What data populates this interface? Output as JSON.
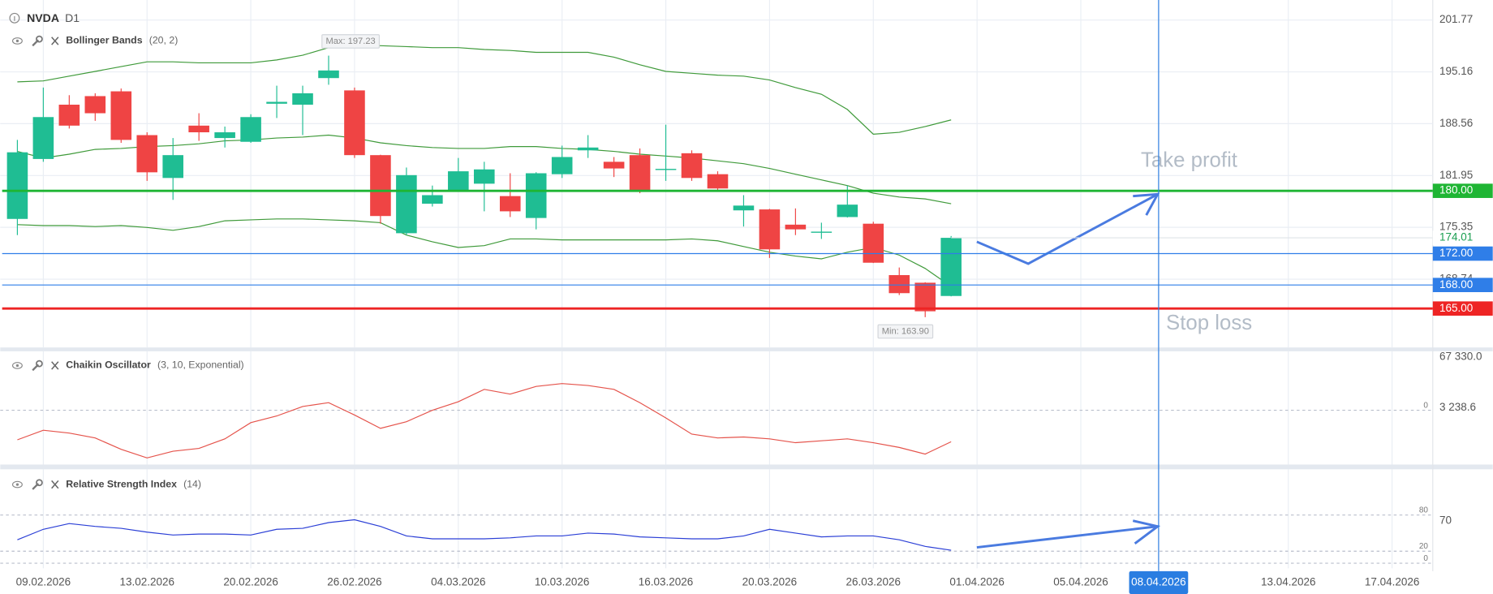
{
  "chart_data": {
    "type": "candlestick",
    "symbol": "NVDA",
    "timeframe": "D1",
    "up_color": "#1fbd93",
    "down_color": "#ef4444",
    "x": [
      0,
      1,
      2,
      3,
      4,
      5,
      6,
      7,
      8,
      9,
      10,
      11,
      12,
      13,
      14,
      15,
      16,
      17,
      18,
      19,
      20,
      21,
      22,
      23,
      24,
      25,
      26,
      27,
      28,
      29,
      30,
      31,
      32,
      33,
      34,
      35,
      36
    ],
    "open": [
      176.42,
      184.06,
      190.98,
      192.07,
      192.68,
      187.1,
      181.64,
      188.31,
      186.73,
      186.25,
      191.1,
      190.98,
      194.37,
      192.8,
      184.55,
      174.6,
      178.36,
      179.94,
      180.91,
      179.33,
      176.54,
      182.12,
      185.16,
      183.7,
      184.55,
      182.73,
      184.79,
      182.12,
      177.51,
      177.63,
      175.69,
      174.72,
      176.66,
      175.81,
      169.26,
      168.29,
      166.6
    ],
    "high": [
      186.49,
      193.16,
      192.19,
      192.43,
      193.04,
      187.46,
      186.73,
      189.89,
      188.19,
      189.76,
      193.4,
      193.4,
      197.23,
      193.16,
      184.6,
      182.97,
      180.67,
      184.19,
      183.7,
      182.24,
      182.37,
      185.76,
      187.1,
      184.31,
      185.4,
      188.43,
      185.16,
      182.49,
      179.45,
      177.7,
      177.76,
      175.94,
      180.67,
      176.06,
      170.23,
      168.35,
      174.24
    ],
    "low": [
      174.36,
      183.7,
      187.94,
      188.92,
      186.12,
      181.27,
      178.85,
      186.37,
      185.52,
      186.12,
      189.28,
      187.1,
      193.52,
      184.19,
      175.81,
      174.36,
      178.0,
      179.9,
      177.39,
      176.66,
      175.09,
      181.64,
      184.19,
      181.76,
      179.7,
      181.27,
      181.27,
      180.06,
      175.45,
      171.45,
      174.36,
      173.87,
      176.6,
      170.8,
      166.72,
      163.9,
      166.55
    ],
    "close": [
      184.91,
      189.4,
      188.31,
      189.89,
      186.49,
      182.36,
      184.55,
      187.46,
      187.46,
      189.4,
      191.34,
      192.43,
      195.34,
      184.55,
      176.79,
      182.0,
      179.45,
      182.49,
      182.73,
      177.39,
      182.24,
      184.31,
      185.52,
      182.85,
      180.06,
      182.8,
      181.64,
      180.3,
      178.12,
      172.54,
      175.09,
      174.8,
      178.24,
      170.84,
      166.96,
      164.65,
      174.01
    ],
    "max_label": "Max: 197.23",
    "min_label": "Min: 163.90",
    "xlim": [
      -0.66,
      54.57
    ],
    "xticks": [
      {
        "value": 1,
        "label": "09.02.2026"
      },
      {
        "value": 5,
        "label": "13.02.2026"
      },
      {
        "value": 9,
        "label": "20.02.2026"
      },
      {
        "value": 13,
        "label": "26.02.2026"
      },
      {
        "value": 17,
        "label": "04.03.2026"
      },
      {
        "value": 21,
        "label": "10.03.2026"
      },
      {
        "value": 25,
        "label": "16.03.2026"
      },
      {
        "value": 29,
        "label": "20.03.2026"
      },
      {
        "value": 33,
        "label": "26.03.2026"
      },
      {
        "value": 37,
        "label": "01.04.2026"
      },
      {
        "value": 41,
        "label": "05.04.2026"
      },
      {
        "value": 44,
        "label": "08.04.2026"
      },
      {
        "value": 49,
        "label": "13.04.2026"
      },
      {
        "value": 53,
        "label": "17.04.2026"
      }
    ],
    "crosshair_x": 44,
    "ylim": [
      160.04,
      204.32
    ],
    "yticks": [
      201.77,
      195.16,
      188.56,
      181.95,
      175.35,
      168.74
    ],
    "grid": true,
    "last_price": {
      "value": 174.01,
      "label": "174.01"
    },
    "price_lines": [
      {
        "value": 180,
        "label": "180.00",
        "color": "#1fb534",
        "note": "Take profit"
      },
      {
        "value": 172,
        "label": "172.00",
        "color": "#2f7ee8"
      },
      {
        "value": 168,
        "label": "168.00",
        "color": "#2f7ee8"
      },
      {
        "value": 165,
        "label": "165.00",
        "color": "#ee2424",
        "note": "Stop loss"
      }
    ],
    "bollinger": {
      "name": "Bollinger Bands",
      "params": "(20, 2)",
      "color": "#3f9a3a",
      "upper": [
        193.89,
        194.01,
        194.62,
        195.22,
        195.83,
        196.44,
        196.44,
        196.31,
        196.31,
        196.31,
        196.68,
        197.28,
        198.25,
        198.62,
        198.5,
        198.38,
        198.25,
        198.25,
        198.01,
        197.89,
        197.65,
        197.65,
        197.65,
        197.04,
        196.07,
        195.22,
        194.98,
        194.74,
        194.62,
        194.13,
        193.16,
        192.31,
        190.37,
        187.22,
        187.46,
        188.19,
        189.04
      ],
      "middle": [
        185.03,
        184.18,
        184.67,
        185.28,
        185.4,
        185.64,
        185.76,
        186.0,
        186.37,
        186.49,
        186.73,
        186.85,
        187.1,
        186.73,
        186.12,
        185.76,
        185.52,
        185.4,
        185.4,
        185.64,
        185.64,
        185.4,
        185.28,
        185.03,
        184.67,
        184.43,
        184.18,
        183.82,
        183.46,
        182.85,
        182.12,
        181.39,
        180.67,
        179.7,
        179.21,
        178.97,
        178.36
      ],
      "lower": [
        175.69,
        175.57,
        175.57,
        175.45,
        175.57,
        175.33,
        174.97,
        175.45,
        176.18,
        176.3,
        176.42,
        176.42,
        176.3,
        176.18,
        175.94,
        174.36,
        173.51,
        172.78,
        173.02,
        173.87,
        173.87,
        173.75,
        173.75,
        173.75,
        173.75,
        173.75,
        173.87,
        173.63,
        172.9,
        172.18,
        171.69,
        171.33,
        172.18,
        172.78,
        171.81,
        170.11,
        167.81
      ]
    },
    "indicators": [
      {
        "type": "line",
        "name": "Chaikin Oscillator",
        "params": "(3, 10, Exponential)",
        "color": "#e5534b",
        "values": [
          -37300,
          -25200,
          -28800,
          -34900,
          -49300,
          -60100,
          -51700,
          -48100,
          -36100,
          -15600,
          -7200,
          4800,
          9600,
          -6000,
          -22800,
          -14400,
          0,
          10800,
          26400,
          20400,
          30100,
          33700,
          31300,
          26400,
          9600,
          -9600,
          -30100,
          -34900,
          -33700,
          -36100,
          -40900,
          -38500,
          -36100,
          -40900,
          -46900,
          -55300,
          -39700
        ],
        "ylim": [
          -68500,
          70900
        ],
        "yticks": [
          {
            "value": 67330,
            "label": "67 330.0"
          },
          {
            "value": 3238.6,
            "label": "3 238.6"
          }
        ],
        "levels": [
          0
        ]
      },
      {
        "type": "line",
        "name": "Relative Strength Index",
        "params": "(14)",
        "color": "#2b3fd6",
        "values": [
          38.9,
          56.3,
          65.8,
          61.1,
          57.9,
          51.6,
          46.8,
          48.4,
          48.4,
          46.8,
          56.3,
          57.9,
          67.4,
          72.1,
          61.1,
          45.3,
          40.5,
          40.5,
          40.5,
          42.1,
          45.3,
          45.3,
          50.0,
          48.4,
          43.7,
          42.1,
          40.5,
          40.5,
          45.3,
          56.3,
          50.0,
          43.7,
          45.3,
          45.3,
          38.9,
          27.9,
          21.6
        ],
        "ylim": [
          -8.4,
          149.5
        ],
        "yticks": [
          70
        ],
        "levels": [
          80,
          20,
          0
        ]
      }
    ]
  }
}
